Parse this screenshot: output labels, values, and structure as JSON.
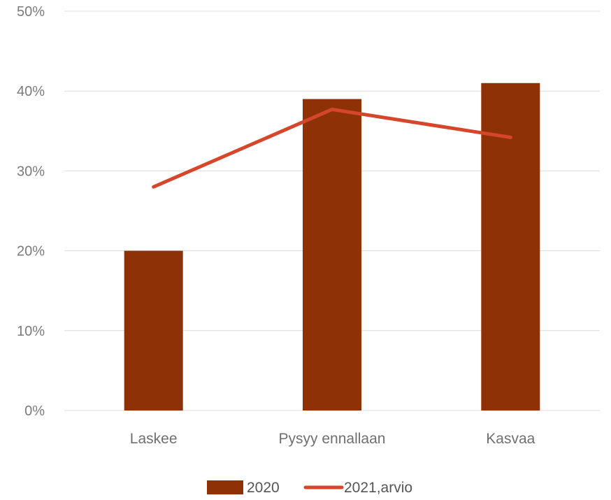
{
  "chart_data": {
    "type": "bar",
    "categories": [
      "Laskee",
      "Pysyy ennallaan",
      "Kasvaa"
    ],
    "series": [
      {
        "name": "2020",
        "type": "bar",
        "color": "#8f3106",
        "values": [
          0.2,
          0.39,
          0.41
        ]
      },
      {
        "name": "2021,arvio",
        "type": "line",
        "color": "#d5462b",
        "values": [
          0.28,
          0.377,
          0.342
        ]
      }
    ],
    "ylim": [
      0,
      0.5
    ],
    "yticks": [
      0,
      0.1,
      0.2,
      0.3,
      0.4,
      0.5
    ],
    "ytick_labels": [
      "0%",
      "10%",
      "20%",
      "30%",
      "40%",
      "50%"
    ],
    "grid": true,
    "legend_position": "bottom",
    "title": "",
    "xlabel": "",
    "ylabel": ""
  }
}
